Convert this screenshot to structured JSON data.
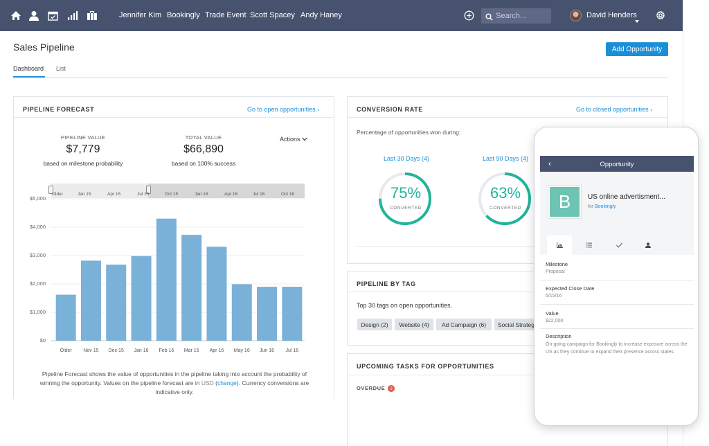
{
  "nav": {
    "links": [
      "Jennifer Kim",
      "Bookingly",
      "Trade Event",
      "Scott Spacey",
      "Andy Haney"
    ],
    "search_placeholder": "Search...",
    "user_name": "David Henders",
    "icons": [
      "home-icon",
      "person-icon",
      "calendar-icon",
      "bar-chart-icon",
      "briefcase-icon",
      "add-circle-icon",
      "search-icon",
      "caret-down-icon",
      "gear-icon"
    ],
    "bar_color": "#47526e"
  },
  "header": {
    "title": "Sales Pipeline",
    "add_button": "Add Opportunity",
    "tabs": [
      "Dashboard",
      "List"
    ]
  },
  "forecast": {
    "title": "PIPELINE FORECAST",
    "link": "Go to open opportunities ›",
    "pipeline_label": "PIPELINE VALUE",
    "pipeline_value": "$7,779",
    "pipeline_sub": "based on milestone probability",
    "total_label": "TOTAL VALUE",
    "total_value": "$66,890",
    "total_sub": "based on 100% success",
    "actions": "Actions",
    "range_labels": [
      "Older",
      "Jan 15",
      "Apr 15",
      "Jul 15",
      "Oct 15",
      "Jan 16",
      "Apr 16",
      "Jul 16",
      "Oct 16"
    ],
    "footnote_pre": "Pipeline Forecast shows the value of opportunities in the pipeline taking into account the probability of winning the opportunity. Values on the pipeline forecast are in ",
    "footnote_usd": "USD",
    "footnote_change": "change",
    "footnote_post": ". Currency conversions are indicative only."
  },
  "chart_data": {
    "type": "bar",
    "categories": [
      "Older",
      "Nov 15",
      "Dec 15",
      "Jan 16",
      "Feb 16",
      "Mar 16",
      "Apr 16",
      "May 16",
      "Jun 16",
      "Jul 16"
    ],
    "values": [
      1620,
      2820,
      2680,
      2980,
      4300,
      3730,
      3310,
      1990,
      1900,
      1900
    ],
    "y_ticks": [
      "$0",
      "$1,000",
      "$2,000",
      "$3,000",
      "$4,000",
      "$5,000"
    ],
    "ylim": [
      0,
      5000
    ],
    "color": "#79b1d8",
    "grid": true,
    "title": "",
    "xlabel": "",
    "ylabel": ""
  },
  "conversion": {
    "title": "CONVERSION RATE",
    "link": "Go to closed opportunities ›",
    "description": "Percentage of opportunities won during:",
    "rings": [
      {
        "period": "Last 30 Days (4)",
        "percent_text": "75%",
        "value": 0.75,
        "label": "CONVERTED"
      },
      {
        "period": "Last 90 Days (4)",
        "percent_text": "63%",
        "value": 0.63,
        "label": "CONVERTED"
      }
    ],
    "ring_color": "#21b499"
  },
  "tags_panel": {
    "title": "PIPELINE BY TAG",
    "description": "Top 30 tags on open opportunities.",
    "tags": [
      "Design (2)",
      "Website (4)",
      "Ad Campaign (6)",
      "Social Strategy"
    ]
  },
  "tasks": {
    "title": "UPCOMING TASKS FOR OPPORTUNITIES",
    "overdue_label": "OVERDUE",
    "overdue_count": "2"
  },
  "phone": {
    "header_title": "Opportunity",
    "logo_letter": "B",
    "logo_color": "#6dc4b3",
    "opp_name": "US online advertisment...",
    "for_prefix": "for ",
    "company": "Bookingly",
    "tab_icons": [
      "chart-icon",
      "list-icon",
      "check-icon",
      "person-icon"
    ],
    "fields": [
      {
        "label": "Milestone",
        "value": "Proposal"
      },
      {
        "label": "Expected Close Date",
        "value": "5/15/16"
      },
      {
        "label": "Value",
        "value": "$22,000"
      }
    ],
    "description_label": "Description",
    "description": "On-going campaign for Bookingly to increase exposure across the US as they continue to expand their presence across states"
  }
}
